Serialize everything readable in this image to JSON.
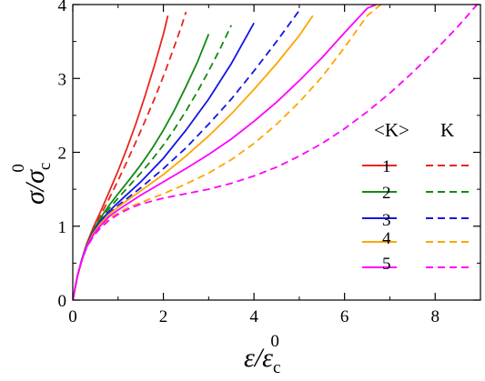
{
  "chart_data": {
    "type": "line",
    "xlabel": "ε/ε",
    "xlabel_sub": "c",
    "xlabel_sup": "0",
    "ylabel": "σ/σ",
    "ylabel_sub": "c",
    "ylabel_sup": "0",
    "xlim": [
      0,
      9
    ],
    "ylim": [
      0,
      4
    ],
    "xticks": [
      0,
      2,
      4,
      6,
      8
    ],
    "yticks": [
      0,
      1,
      2,
      3,
      4
    ],
    "legend": {
      "placement": "right",
      "header_left": "<K>",
      "header_right": "K",
      "rows": [
        "1",
        "2",
        "3",
        "4",
        "5"
      ]
    },
    "series": [
      {
        "label": "1",
        "style": "solid",
        "color": "#e8261e",
        "x": [
          0,
          0.1,
          0.2,
          0.3,
          0.45,
          0.6,
          0.8,
          1.0,
          1.2,
          1.4,
          1.6,
          1.8,
          2.0,
          2.1
        ],
        "y": [
          0,
          0.32,
          0.55,
          0.75,
          0.98,
          1.18,
          1.46,
          1.75,
          2.06,
          2.4,
          2.77,
          3.17,
          3.6,
          3.85
        ]
      },
      {
        "label": "1",
        "style": "dashed",
        "color": "#e8261e",
        "x": [
          0,
          0.1,
          0.2,
          0.3,
          0.45,
          0.6,
          0.8,
          1.0,
          1.2,
          1.4,
          1.6,
          1.8,
          2.0,
          2.2,
          2.4,
          2.5
        ],
        "y": [
          0,
          0.32,
          0.55,
          0.74,
          0.95,
          1.13,
          1.37,
          1.62,
          1.88,
          2.15,
          2.43,
          2.72,
          3.03,
          3.36,
          3.71,
          3.9
        ]
      },
      {
        "label": "2",
        "style": "solid",
        "color": "#128a12",
        "x": [
          0,
          0.1,
          0.2,
          0.3,
          0.45,
          0.6,
          0.8,
          1.0,
          1.25,
          1.5,
          1.75,
          2.0,
          2.25,
          2.5,
          2.75,
          3.0
        ],
        "y": [
          0,
          0.32,
          0.55,
          0.74,
          0.94,
          1.1,
          1.28,
          1.44,
          1.63,
          1.83,
          2.05,
          2.3,
          2.58,
          2.89,
          3.22,
          3.6
        ]
      },
      {
        "label": "2",
        "style": "dashed",
        "color": "#128a12",
        "x": [
          0,
          0.1,
          0.2,
          0.3,
          0.45,
          0.6,
          0.8,
          1.0,
          1.25,
          1.5,
          1.75,
          2.0,
          2.25,
          2.5,
          2.75,
          3.0,
          3.25,
          3.5
        ],
        "y": [
          0,
          0.32,
          0.55,
          0.74,
          0.93,
          1.08,
          1.24,
          1.38,
          1.55,
          1.72,
          1.9,
          2.1,
          2.32,
          2.56,
          2.82,
          3.1,
          3.4,
          3.72
        ]
      },
      {
        "label": "3",
        "style": "solid",
        "color": "#1515e6",
        "x": [
          0,
          0.1,
          0.2,
          0.3,
          0.45,
          0.6,
          0.8,
          1.0,
          1.25,
          1.5,
          2.0,
          2.5,
          3.0,
          3.5,
          4.0
        ],
        "y": [
          0,
          0.32,
          0.55,
          0.73,
          0.92,
          1.06,
          1.2,
          1.32,
          1.46,
          1.6,
          1.92,
          2.3,
          2.72,
          3.2,
          3.75
        ]
      },
      {
        "label": "3",
        "style": "dashed",
        "color": "#1515e6",
        "x": [
          0,
          0.1,
          0.2,
          0.3,
          0.45,
          0.6,
          0.8,
          1.0,
          1.25,
          1.5,
          2.0,
          2.5,
          3.0,
          3.5,
          4.0,
          4.5,
          5.0
        ],
        "y": [
          0,
          0.32,
          0.55,
          0.73,
          0.91,
          1.04,
          1.17,
          1.28,
          1.4,
          1.52,
          1.78,
          2.06,
          2.38,
          2.72,
          3.1,
          3.5,
          3.92
        ]
      },
      {
        "label": "4",
        "style": "solid",
        "color": "#ffa500",
        "x": [
          0,
          0.1,
          0.2,
          0.3,
          0.45,
          0.6,
          0.8,
          1.0,
          1.25,
          1.5,
          2.0,
          2.5,
          3.0,
          3.5,
          4.0,
          4.5,
          5.0,
          5.3
        ],
        "y": [
          0,
          0.32,
          0.54,
          0.72,
          0.9,
          1.03,
          1.16,
          1.26,
          1.37,
          1.48,
          1.7,
          1.95,
          2.22,
          2.52,
          2.85,
          3.2,
          3.58,
          3.85
        ]
      },
      {
        "label": "4",
        "style": "dashed",
        "color": "#ffa500",
        "x": [
          0,
          0.1,
          0.2,
          0.3,
          0.45,
          0.6,
          0.8,
          1.0,
          1.25,
          1.5,
          2.0,
          2.5,
          3.0,
          3.5,
          4.0,
          4.5,
          5.0,
          5.5,
          6.0,
          6.5,
          6.8
        ],
        "y": [
          0,
          0.32,
          0.54,
          0.71,
          0.88,
          0.99,
          1.1,
          1.18,
          1.26,
          1.32,
          1.44,
          1.57,
          1.72,
          1.9,
          2.12,
          2.38,
          2.68,
          3.02,
          3.42,
          3.85,
          4.0
        ]
      },
      {
        "label": "5",
        "style": "solid",
        "color": "#ff00ff",
        "x": [
          0,
          0.1,
          0.2,
          0.3,
          0.45,
          0.6,
          0.8,
          1.0,
          1.25,
          1.5,
          2.0,
          2.5,
          3.0,
          3.5,
          4.0,
          4.5,
          5.0,
          5.5,
          6.0,
          6.5,
          6.7
        ],
        "y": [
          0,
          0.32,
          0.54,
          0.71,
          0.88,
          1.0,
          1.13,
          1.22,
          1.32,
          1.42,
          1.6,
          1.78,
          1.97,
          2.18,
          2.42,
          2.68,
          2.97,
          3.28,
          3.62,
          3.95,
          4.0
        ]
      },
      {
        "label": "5",
        "style": "dashed",
        "color": "#ff00ff",
        "x": [
          0,
          0.1,
          0.2,
          0.3,
          0.45,
          0.6,
          0.8,
          1.0,
          1.25,
          1.5,
          2.0,
          2.5,
          3.0,
          3.5,
          4.0,
          4.5,
          5.0,
          5.5,
          6.0,
          6.5,
          7.0,
          7.5,
          8.0,
          8.5,
          9.0
        ],
        "y": [
          0,
          0.32,
          0.54,
          0.7,
          0.86,
          0.97,
          1.08,
          1.16,
          1.24,
          1.3,
          1.38,
          1.44,
          1.5,
          1.58,
          1.68,
          1.8,
          1.95,
          2.12,
          2.32,
          2.55,
          2.8,
          3.08,
          3.38,
          3.7,
          4.05
        ]
      }
    ]
  }
}
